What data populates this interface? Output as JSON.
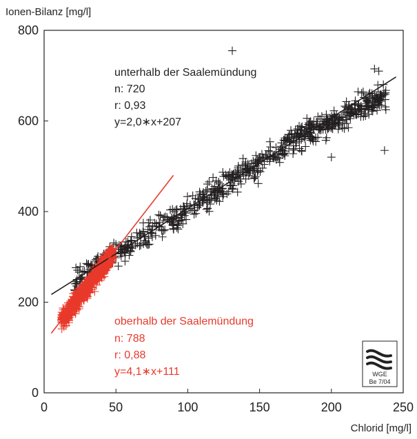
{
  "chart_data": {
    "type": "scatter",
    "ylabel": "Ionen-Bilanz [mg/l]",
    "xlabel": "Chlorid [mg/l]",
    "xlim": [
      0,
      250
    ],
    "ylim": [
      0,
      800
    ],
    "xticks": [
      0,
      50,
      100,
      150,
      200,
      250
    ],
    "yticks": [
      0,
      200,
      400,
      600,
      800
    ],
    "grid": false,
    "series": [
      {
        "name": "unterhalb der Saalemündung",
        "color": "#231f20",
        "point_count": 720,
        "x_range": [
          20,
          238
        ],
        "fit": {
          "slope": 2.0,
          "intercept": 207,
          "x_from": 5,
          "x_to": 245
        },
        "stats": [
          "unterhalb der Saalemündung",
          "n: 720",
          "r: 0,93",
          "y=2,0∗x+207"
        ],
        "outliers": [
          [
            131,
            755
          ],
          [
            200,
            520
          ],
          [
            237,
            535
          ],
          [
            230,
            715
          ],
          [
            233,
            710
          ]
        ]
      },
      {
        "name": "oberhalb der Saalemündung",
        "color": "#e8392b",
        "point_count": 788,
        "x_range": [
          12,
          48
        ],
        "fit": {
          "slope": 4.1,
          "intercept": 111,
          "x_from": 5,
          "x_to": 90
        },
        "stats": [
          "oberhalb der Saalemündung",
          "n: 788",
          "r: 0,88",
          "y=4,1∗x+111"
        ]
      }
    ]
  },
  "logo": {
    "line1": "WGE",
    "line2": "Be 7/04"
  }
}
